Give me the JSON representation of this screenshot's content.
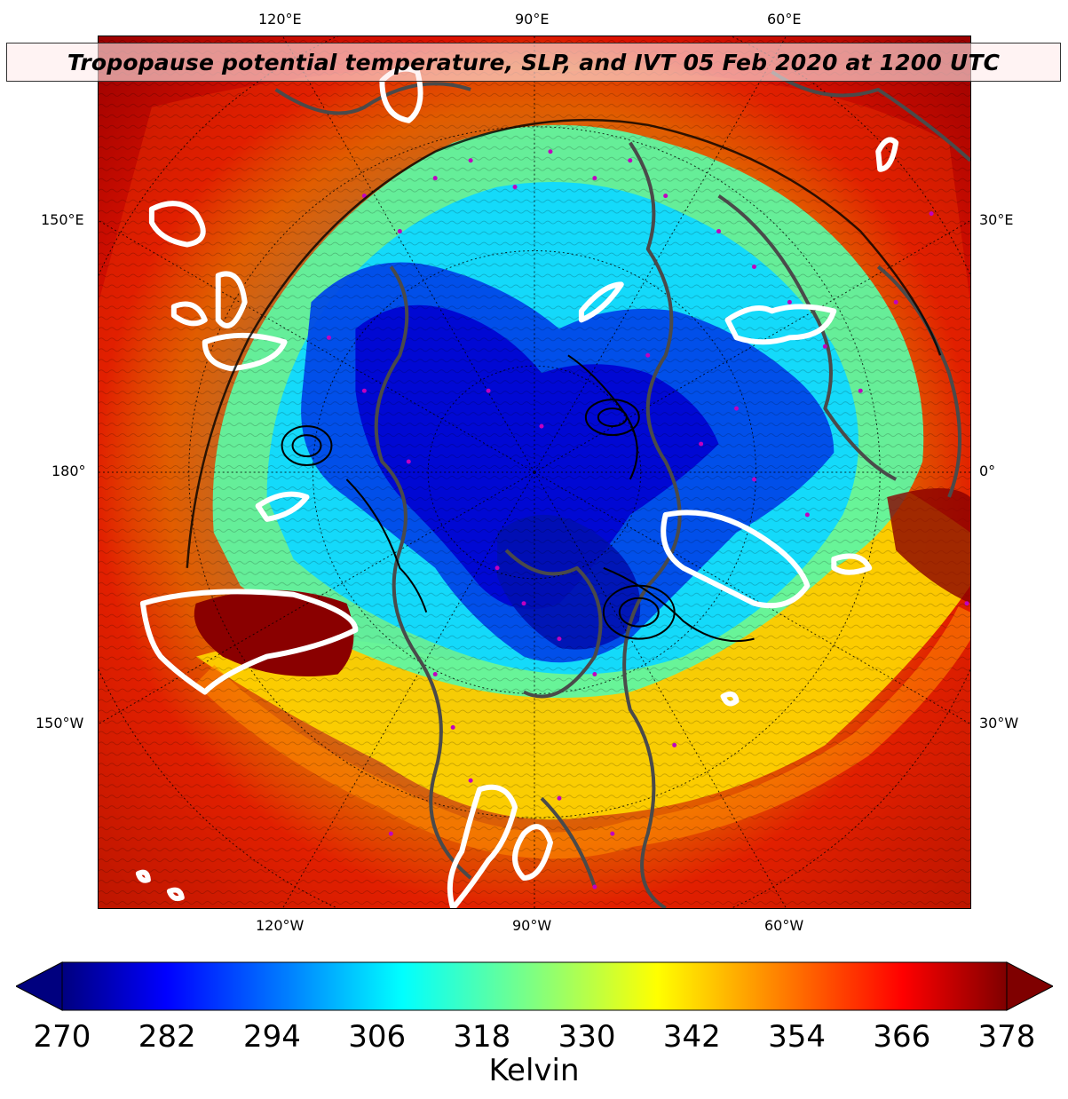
{
  "title": "Tropopause potential temperature, SLP, and IVT 05 Feb 2020 at 1200 UTC",
  "longitude_labels": {
    "top": [
      "120°E",
      "90°E",
      "60°E"
    ],
    "left": [
      "150°E",
      "180°",
      "150°W"
    ],
    "right": [
      "30°E",
      "0°",
      "30°W"
    ],
    "bottom": [
      "120°W",
      "90°W",
      "60°W"
    ]
  },
  "colorbar": {
    "label": "Kelvin",
    "ticks": [
      "270",
      "282",
      "294",
      "306",
      "318",
      "330",
      "342",
      "354",
      "366",
      "378"
    ],
    "range": [
      270,
      378
    ],
    "extend": "both",
    "colormap": "jet",
    "colors": [
      "#00007f",
      "#0000ff",
      "#0080ff",
      "#00ffff",
      "#80ff80",
      "#ffff00",
      "#ff8000",
      "#ff0000",
      "#7f0000"
    ]
  },
  "map": {
    "projection": "north-polar-stereographic",
    "field": "tropopause potential temperature",
    "overlays": [
      "sea level pressure contours",
      "IVT contours",
      "coastlines",
      "graticule"
    ]
  }
}
